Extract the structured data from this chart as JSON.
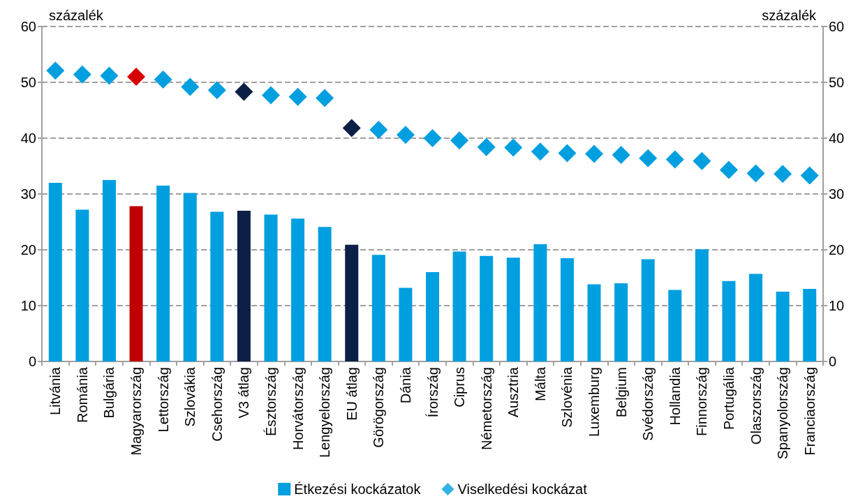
{
  "chart_data": {
    "type": "bar",
    "categories": [
      "Litvánia",
      "Románia",
      "Bulgária",
      "Magyarország",
      "Lettország",
      "Szlovákia",
      "Csehország",
      "V3 átlag",
      "Észtország",
      "Horvátország",
      "Lengyelország",
      "EU átlag",
      "Görögország",
      "Dánia",
      "Írország",
      "Ciprus",
      "Németország",
      "Ausztria",
      "Málta",
      "Szlovénia",
      "Luxemburg",
      "Belgium",
      "Svédország",
      "Hollandia",
      "Finnország",
      "Portugália",
      "Olaszország",
      "Spanyolország",
      "Franciaország"
    ],
    "series": [
      {
        "name": "Étkezési kockázatok",
        "color": "#009fe0",
        "colors": [
          "#009fe0",
          "#009fe0",
          "#009fe0",
          "#c00000",
          "#009fe0",
          "#009fe0",
          "#009fe0",
          "#0c1f47",
          "#009fe0",
          "#009fe0",
          "#009fe0",
          "#0c1f47",
          "#009fe0",
          "#009fe0",
          "#009fe0",
          "#009fe0",
          "#009fe0",
          "#009fe0",
          "#009fe0",
          "#009fe0",
          "#009fe0",
          "#009fe0",
          "#009fe0",
          "#009fe0",
          "#009fe0",
          "#009fe0",
          "#009fe0",
          "#009fe0",
          "#009fe0"
        ],
        "values": [
          32.0,
          27.2,
          32.5,
          27.8,
          31.5,
          30.2,
          26.8,
          27.0,
          26.3,
          25.6,
          24.1,
          20.9,
          19.1,
          13.2,
          16.0,
          19.7,
          18.9,
          18.6,
          21.0,
          18.5,
          13.8,
          14.0,
          18.3,
          12.8,
          20.1,
          14.4,
          15.7,
          12.5,
          13.0
        ]
      },
      {
        "name": "Viselkedési kockázat",
        "type": "scatter",
        "marker": "diamond",
        "color": "#009fe0",
        "colors": [
          "#009fe0",
          "#009fe0",
          "#009fe0",
          "#d60000",
          "#009fe0",
          "#009fe0",
          "#009fe0",
          "#0c1f47",
          "#009fe0",
          "#009fe0",
          "#009fe0",
          "#0c1f47",
          "#009fe0",
          "#009fe0",
          "#009fe0",
          "#009fe0",
          "#009fe0",
          "#009fe0",
          "#009fe0",
          "#009fe0",
          "#009fe0",
          "#009fe0",
          "#009fe0",
          "#009fe0",
          "#009fe0",
          "#009fe0",
          "#009fe0",
          "#009fe0",
          "#009fe0"
        ],
        "values": [
          52.1,
          51.4,
          51.2,
          51.0,
          50.5,
          49.2,
          48.6,
          48.3,
          47.7,
          47.4,
          47.2,
          41.8,
          41.5,
          40.6,
          40.0,
          39.6,
          38.4,
          38.3,
          37.6,
          37.3,
          37.2,
          37.0,
          36.4,
          36.2,
          35.9,
          34.3,
          33.7,
          33.6,
          33.3
        ]
      }
    ],
    "ylabel": "százalék",
    "y2label": "százalék",
    "ylim": [
      0,
      60
    ],
    "yticks": [
      0,
      10,
      20,
      30,
      40,
      50,
      60
    ],
    "y2lim": [
      0,
      60
    ],
    "y2ticks": [
      0,
      10,
      20,
      30,
      40,
      50,
      60
    ],
    "grid": "y",
    "legend": "bottom"
  }
}
